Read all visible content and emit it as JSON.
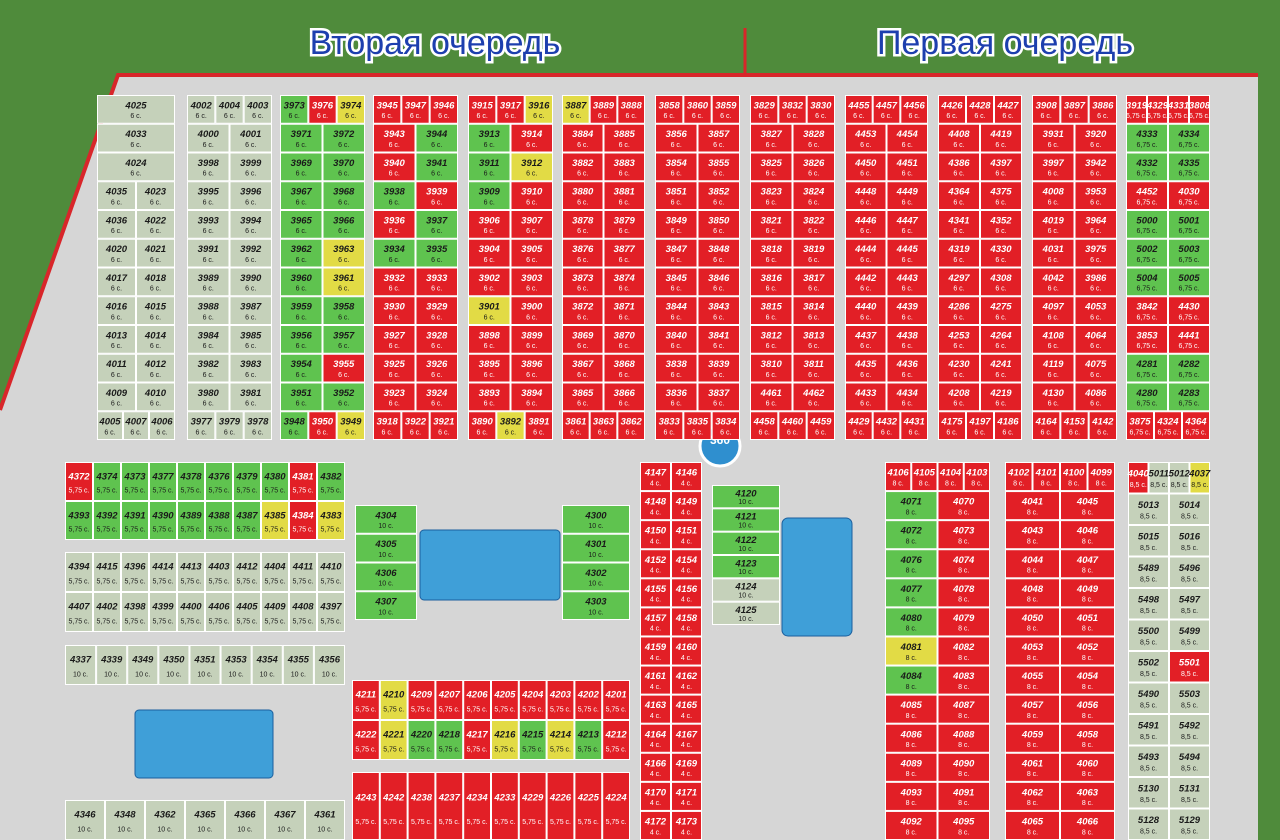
{
  "header": {
    "left_title": "Вторая очередь",
    "right_title": "Первая очередь"
  },
  "pano": "360",
  "status_colors": {
    "sold": "#e21f26",
    "available": "#5fc34f",
    "reserved": "#e2db45",
    "open": "#c5d1ba"
  },
  "blocks": [
    {
      "area": "6 с.",
      "status": "open",
      "rows": [
        [
          "4025"
        ],
        [
          "4033"
        ],
        [
          "4024"
        ],
        [
          "4035",
          "4023"
        ],
        [
          "4036",
          "4022"
        ],
        [
          "4020",
          "4021"
        ],
        [
          "4017",
          "4018"
        ],
        [
          "4016",
          "4015"
        ],
        [
          "4013",
          "4014"
        ],
        [
          "4011",
          "4012"
        ],
        [
          "4009",
          "4010"
        ],
        [
          "4005",
          "4007",
          "4006"
        ]
      ]
    },
    {
      "area": "6 с.",
      "status": "open",
      "rows": [
        [
          "4002",
          "4004",
          "4003"
        ],
        [
          "4000",
          "4001"
        ],
        [
          "3998",
          "3999"
        ],
        [
          "3995",
          "3996"
        ],
        [
          "3993",
          "3994"
        ],
        [
          "3991",
          "3992"
        ],
        [
          "3989",
          "3990"
        ],
        [
          "3988",
          "3987"
        ],
        [
          "3984",
          "3985"
        ],
        [
          "3982",
          "3983"
        ],
        [
          "3980",
          "3981"
        ],
        [
          "3977",
          "3979",
          "3978"
        ]
      ]
    },
    {
      "area": "6 с.",
      "status": "available",
      "sold": [
        "3976",
        "3955",
        "3950"
      ],
      "reserved": [
        "3974",
        "3963",
        "3961",
        "3949"
      ],
      "rows": [
        [
          "3973",
          "3976",
          "3974"
        ],
        [
          "3971",
          "3972"
        ],
        [
          "3969",
          "3970"
        ],
        [
          "3967",
          "3968"
        ],
        [
          "3965",
          "3966"
        ],
        [
          "3962",
          "3963"
        ],
        [
          "3960",
          "3961"
        ],
        [
          "3959",
          "3958"
        ],
        [
          "3956",
          "3957"
        ],
        [
          "3954",
          "3955"
        ],
        [
          "3951",
          "3952"
        ],
        [
          "3948",
          "3950",
          "3949"
        ]
      ]
    },
    {
      "area": "6 с.",
      "status": "sold",
      "available": [
        "3944",
        "3941",
        "3938",
        "3937",
        "3934",
        "3935"
      ],
      "rows": [
        [
          "3945",
          "3947",
          "3946"
        ],
        [
          "3943",
          "3944"
        ],
        [
          "3940",
          "3941"
        ],
        [
          "3938",
          "3939"
        ],
        [
          "3936",
          "3937"
        ],
        [
          "3934",
          "3935"
        ],
        [
          "3932",
          "3933"
        ],
        [
          "3930",
          "3929"
        ],
        [
          "3927",
          "3928"
        ],
        [
          "3925",
          "3926"
        ],
        [
          "3923",
          "3924"
        ],
        [
          "3918",
          "3922",
          "3921"
        ]
      ]
    },
    {
      "area": "6 с.",
      "status": "sold",
      "available": [
        "3913",
        "3911",
        "3909"
      ],
      "reserved": [
        "3916",
        "3912",
        "3901",
        "3892"
      ],
      "rows": [
        [
          "3915",
          "3917",
          "3916"
        ],
        [
          "3913",
          "3914"
        ],
        [
          "3911",
          "3912"
        ],
        [
          "3909",
          "3910"
        ],
        [
          "3906",
          "3907"
        ],
        [
          "3904",
          "3905"
        ],
        [
          "3902",
          "3903"
        ],
        [
          "3901",
          "3900"
        ],
        [
          "3898",
          "3899"
        ],
        [
          "3895",
          "3896"
        ],
        [
          "3893",
          "3894"
        ],
        [
          "3890",
          "3892",
          "3891"
        ]
      ]
    },
    {
      "area": "6 с.",
      "status": "sold",
      "reserved": [
        "3887"
      ],
      "rows": [
        [
          "3887",
          "3889",
          "3888"
        ],
        [
          "3884",
          "3885"
        ],
        [
          "3882",
          "3883"
        ],
        [
          "3880",
          "3881"
        ],
        [
          "3878",
          "3879"
        ],
        [
          "3876",
          "3877"
        ],
        [
          "3873",
          "3874"
        ],
        [
          "3872",
          "3871"
        ],
        [
          "3869",
          "3870"
        ],
        [
          "3867",
          "3868"
        ],
        [
          "3865",
          "3866"
        ],
        [
          "3861",
          "3863",
          "3862"
        ]
      ]
    },
    {
      "area": "6 с.",
      "status": "sold",
      "rows": [
        [
          "3858",
          "3860",
          "3859"
        ],
        [
          "3856",
          "3857"
        ],
        [
          "3854",
          "3855"
        ],
        [
          "3851",
          "3852"
        ],
        [
          "3849",
          "3850"
        ],
        [
          "3847",
          "3848"
        ],
        [
          "3845",
          "3846"
        ],
        [
          "3844",
          "3843"
        ],
        [
          "3840",
          "3841"
        ],
        [
          "3838",
          "3839"
        ],
        [
          "3836",
          "3837"
        ],
        [
          "3833",
          "3835",
          "3834"
        ]
      ]
    },
    {
      "area": "6 с.",
      "status": "sold",
      "rows": [
        [
          "3829",
          "3832",
          "3830"
        ],
        [
          "3827",
          "3828"
        ],
        [
          "3825",
          "3826"
        ],
        [
          "3823",
          "3824"
        ],
        [
          "3821",
          "3822"
        ],
        [
          "3818",
          "3819"
        ],
        [
          "3816",
          "3817"
        ],
        [
          "3815",
          "3814"
        ],
        [
          "3812",
          "3813"
        ],
        [
          "3810",
          "3811"
        ],
        [
          "4461",
          "4462"
        ],
        [
          "4458",
          "4460",
          "4459"
        ]
      ]
    },
    {
      "area": "6 с.",
      "status": "sold",
      "rows": [
        [
          "4455",
          "4457",
          "4456"
        ],
        [
          "4453",
          "4454"
        ],
        [
          "4450",
          "4451"
        ],
        [
          "4448",
          "4449"
        ],
        [
          "4446",
          "4447"
        ],
        [
          "4444",
          "4445"
        ],
        [
          "4442",
          "4443"
        ],
        [
          "4440",
          "4439"
        ],
        [
          "4437",
          "4438"
        ],
        [
          "4435",
          "4436"
        ],
        [
          "4433",
          "4434"
        ],
        [
          "4429",
          "4432",
          "4431"
        ]
      ]
    },
    {
      "area": "6 с.",
      "status": "sold",
      "rows": [
        [
          "4426",
          "4428",
          "4427"
        ],
        [
          "4408",
          "4419"
        ],
        [
          "4386",
          "4397"
        ],
        [
          "4364",
          "4375"
        ],
        [
          "4341",
          "4352"
        ],
        [
          "4319",
          "4330"
        ],
        [
          "4297",
          "4308"
        ],
        [
          "4286",
          "4275"
        ],
        [
          "4253",
          "4264"
        ],
        [
          "4230",
          "4241"
        ],
        [
          "4208",
          "4219"
        ],
        [
          "4175",
          "4197",
          "4186"
        ]
      ]
    },
    {
      "area": "6 с.",
      "status": "sold",
      "rows": [
        [
          "3908",
          "3897",
          "3886"
        ],
        [
          "3931",
          "3920"
        ],
        [
          "3997",
          "3942"
        ],
        [
          "4008",
          "3953"
        ],
        [
          "4019",
          "3964"
        ],
        [
          "4031",
          "3975"
        ],
        [
          "4042",
          "3986"
        ],
        [
          "4097",
          "4053"
        ],
        [
          "4108",
          "4064"
        ],
        [
          "4119",
          "4075"
        ],
        [
          "4130",
          "4086"
        ],
        [
          "4164",
          "4153",
          "4142"
        ]
      ]
    },
    {
      "area": "6,75 с.",
      "status": "sold",
      "available": [
        "4333",
        "4334",
        "4332",
        "4335",
        "5000",
        "5001",
        "5002",
        "5003",
        "5004",
        "5005",
        "4281",
        "4282",
        "4280",
        "4283"
      ],
      "rows": [
        [
          "3919",
          "4329",
          "4331",
          "3808"
        ],
        [
          "4333",
          "4334"
        ],
        [
          "4332",
          "4335"
        ],
        [
          "4452",
          "4030"
        ],
        [
          "5000",
          "5001"
        ],
        [
          "5002",
          "5003"
        ],
        [
          "5004",
          "5005"
        ],
        [
          "3842",
          "4430"
        ],
        [
          "3853",
          "4441"
        ],
        [
          "4281",
          "4282"
        ],
        [
          "4280",
          "4283"
        ],
        [
          "3875",
          "4324",
          "4364"
        ]
      ]
    },
    {
      "area": "5,75 с.",
      "status": "available",
      "sold": [
        "4372",
        "4381",
        "4384"
      ],
      "reserved": [
        "4385",
        "4383"
      ],
      "rows": [
        [
          "4372",
          "4374",
          "4373",
          "4377",
          "4378",
          "4376",
          "4379",
          "4380",
          "4381",
          "4382"
        ],
        [
          "4393",
          "4392",
          "4391",
          "4390",
          "4389",
          "4388",
          "4387",
          "4385",
          "4384",
          "4383"
        ]
      ]
    },
    {
      "area": "4 с.",
      "status": "sold",
      "rows": [
        [
          "4147",
          "4146"
        ],
        [
          "4148",
          "4149"
        ],
        [
          "4150",
          "4151"
        ],
        [
          "4152",
          "4154"
        ],
        [
          "4155",
          "4156"
        ],
        [
          "4157",
          "4158"
        ],
        [
          "4159",
          "4160"
        ],
        [
          "4161",
          "4162"
        ],
        [
          "4163",
          "4165"
        ],
        [
          "4164",
          "4167"
        ],
        [
          "4166",
          "4169"
        ],
        [
          "4170",
          "4171"
        ],
        [
          "4172",
          "4173"
        ]
      ]
    },
    {
      "area": "8 с.",
      "status": "sold",
      "available": [
        "4071",
        "4072",
        "4076",
        "4077",
        "4080",
        "4084"
      ],
      "reserved": [
        "4081"
      ],
      "rows": [
        [
          "4106",
          "4105",
          "4104",
          "4103"
        ],
        [
          "4071",
          "4070"
        ],
        [
          "4072",
          "4073"
        ],
        [
          "4076",
          "4074"
        ],
        [
          "4077",
          "4078"
        ],
        [
          "4080",
          "4079"
        ],
        [
          "4081",
          "4082"
        ],
        [
          "4084",
          "4083"
        ],
        [
          "4085",
          "4087"
        ],
        [
          "4086",
          "4088"
        ],
        [
          "4089",
          "4090"
        ],
        [
          "4093",
          "4091"
        ],
        [
          "4092",
          "4095"
        ]
      ]
    },
    {
      "area": "8 с.",
      "status": "sold",
      "rows": [
        [
          "4102",
          "4101",
          "4100",
          "4099"
        ],
        [
          "4041",
          "4045"
        ],
        [
          "4043",
          "4046"
        ],
        [
          "4044",
          "4047"
        ],
        [
          "4048",
          "4049"
        ],
        [
          "4050",
          "4051"
        ],
        [
          "4053",
          "4052"
        ],
        [
          "4055",
          "4054"
        ],
        [
          "4057",
          "4056"
        ],
        [
          "4059",
          "4058"
        ],
        [
          "4061",
          "4060"
        ],
        [
          "4062",
          "4063"
        ],
        [
          "4065",
          "4066"
        ]
      ]
    },
    {
      "area": "5,75 с.",
      "status": "sold",
      "reserved": [
        "4210",
        "4221",
        "4216",
        "4214"
      ],
      "available": [
        "4220",
        "4218",
        "4215",
        "4213"
      ],
      "rows": [
        [
          "4211",
          "4210",
          "4209",
          "4207",
          "4206",
          "4205",
          "4204",
          "4203",
          "4202",
          "4201"
        ],
        [
          "4222",
          "4221",
          "4220",
          "4218",
          "4217",
          "4216",
          "4215",
          "4214",
          "4213",
          "4212"
        ]
      ]
    },
    {
      "area": "5,75 с.",
      "status": "sold",
      "rows": [
        [
          "4243",
          "4242",
          "4238",
          "4237",
          "4234",
          "4233",
          "4229",
          "4226",
          "4225",
          "4224"
        ]
      ]
    },
    {
      "area": "5,75 с.",
      "status": "open",
      "rows": [
        [
          "4394",
          "4415",
          "4396",
          "4414",
          "4413",
          "4403",
          "4412",
          "4404",
          "4411",
          "4410"
        ],
        [
          "4407",
          "4402",
          "4398",
          "4399",
          "4400",
          "4406",
          "4405",
          "4409",
          "4408",
          "4397"
        ]
      ]
    },
    {
      "area": "10 с.",
      "status": "available",
      "rows": [
        [
          "4304"
        ],
        [
          "4305"
        ],
        [
          "4306"
        ],
        [
          "4307"
        ]
      ]
    },
    {
      "area": "10 с.",
      "status": "available",
      "rows": [
        [
          "4300"
        ],
        [
          "4301"
        ],
        [
          "4302"
        ],
        [
          "4303"
        ]
      ]
    },
    {
      "area": "10 с.",
      "status": "available",
      "open": [
        "4124",
        "4125"
      ],
      "rows": [
        [
          "4120"
        ],
        [
          "4121"
        ],
        [
          "4122"
        ],
        [
          "4123"
        ],
        [
          "4124"
        ],
        [
          "4125"
        ]
      ]
    },
    {
      "area": "8,5 с.",
      "status": "open",
      "sold": [
        "4040",
        "5501"
      ],
      "reserved": [
        "4037"
      ],
      "rows": [
        [
          "4040",
          "5011",
          "5012",
          "4037"
        ],
        [
          "5013",
          "5014"
        ],
        [
          "5015",
          "5016"
        ],
        [
          "5489",
          "5496"
        ],
        [
          "5498",
          "5497"
        ],
        [
          "5500",
          "5499"
        ],
        [
          "5502",
          "5501"
        ],
        [
          "5490",
          "5503"
        ],
        [
          "5491",
          "5492"
        ],
        [
          "5493",
          "5494"
        ],
        [
          "5130",
          "5131"
        ],
        [
          "5128",
          "5129"
        ]
      ]
    },
    {
      "area": "10 с.",
      "status": "open",
      "rows": [
        [
          "4337",
          "4339",
          "4349",
          "4350",
          "4351",
          "4353",
          "4354",
          "4355",
          "4356"
        ]
      ]
    },
    {
      "area": "10 с.",
      "status": "open",
      "rows": [
        [
          "4346",
          "4348",
          "4362",
          "4365",
          "4366",
          "4367",
          "4361"
        ]
      ]
    }
  ]
}
